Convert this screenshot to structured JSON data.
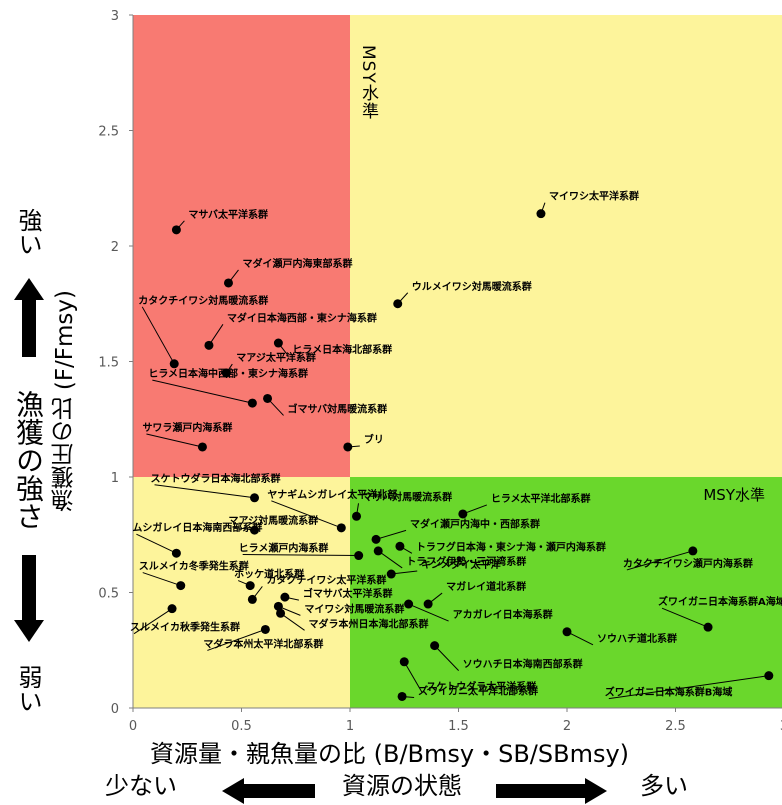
{
  "side": {
    "strong": "強い",
    "weak": "弱い",
    "fishing_strength": "漁獲の強さ",
    "few": "少ない",
    "many": "多い",
    "resource_state": "資源の状態"
  },
  "colors": {
    "red_zone": "#f87a72",
    "yellow_zone": "#fdf49b",
    "green_zone": "#6ad72c",
    "point": "#000000"
  },
  "chart_data": {
    "type": "scatter",
    "title": "",
    "xlabel": "資源量・親魚量の比 (B/Bmsy・SB/SBmsy)",
    "ylabel": "漁獲圧の比 (F/Fmsy)",
    "xlim": [
      0,
      3
    ],
    "ylim": [
      0,
      3
    ],
    "xticks": [
      "0",
      "0.5",
      "1",
      "1.5",
      "2",
      "2.5",
      "3"
    ],
    "yticks": [
      "0",
      "0.5",
      "1",
      "1.5",
      "2",
      "2.5",
      "3"
    ],
    "grid": false,
    "zones": [
      {
        "name": "overfishing",
        "x": [
          0,
          1
        ],
        "y": [
          1,
          3
        ],
        "color": "red_zone"
      },
      {
        "name": "caution",
        "x": [
          1,
          3
        ],
        "y": [
          1,
          3
        ],
        "color": "yellow_zone"
      },
      {
        "name": "caution-low",
        "x": [
          0,
          1
        ],
        "y": [
          0,
          1
        ],
        "color": "yellow_zone"
      },
      {
        "name": "good",
        "x": [
          1,
          3
        ],
        "y": [
          0,
          1
        ],
        "color": "green_zone"
      }
    ],
    "zone_labels": [
      "MSY水準",
      "MSY水準"
    ],
    "points": [
      {
        "label": "マサバ太平洋系群",
        "x": 0.2,
        "y": 2.07
      },
      {
        "label": "マイワシ太平洋系群",
        "x": 1.88,
        "y": 2.14
      },
      {
        "label": "マダイ瀬戸内海東部系群",
        "x": 0.44,
        "y": 1.84
      },
      {
        "label": "ウルメイワシ対馬暖流系群",
        "x": 1.22,
        "y": 1.75
      },
      {
        "label": "カタクチイワシ対馬暖流系群",
        "x": 0.19,
        "y": 1.49
      },
      {
        "label": "マダイ日本海西部・東シナ海系群",
        "x": 0.35,
        "y": 1.57
      },
      {
        "label": "ヒラメ日本海北部系群",
        "x": 0.67,
        "y": 1.58
      },
      {
        "label": "マアジ太平洋系群",
        "x": 0.43,
        "y": 1.45
      },
      {
        "label": "ヒラメ日本海中西部・東シナ海系群",
        "x": 0.55,
        "y": 1.32
      },
      {
        "label": "ゴマサバ対馬暖流系群",
        "x": 0.62,
        "y": 1.34
      },
      {
        "label": "サワラ瀬戸内海系群",
        "x": 0.32,
        "y": 1.13
      },
      {
        "label": "ブリ",
        "x": 0.99,
        "y": 1.13
      },
      {
        "label": "スケトウダラ日本海北部系群",
        "x": 0.56,
        "y": 0.91
      },
      {
        "label": "ヤナギムシガレイ太平洋北部",
        "x": 0.96,
        "y": 0.78
      },
      {
        "label": "マサバ対馬暖流系群",
        "x": 1.03,
        "y": 0.83
      },
      {
        "label": "ヒラメ太平洋北部系群",
        "x": 1.52,
        "y": 0.84
      },
      {
        "label": "マアジ対馬暖流系群",
        "x": 0.56,
        "y": 0.77
      },
      {
        "label": "マダイ瀬戸内海中・西部系群",
        "x": 1.12,
        "y": 0.73
      },
      {
        "label": "ムシガレイ日本海南西部系群",
        "x": 0.2,
        "y": 0.67
      },
      {
        "label": "ヒラメ瀬戸内海系群",
        "x": 1.04,
        "y": 0.66
      },
      {
        "label": "トラフグ日本海・東シナ海・瀬戸内海系群",
        "x": 1.23,
        "y": 0.7
      },
      {
        "label": "トラフグ伊勢・三河湾系群",
        "x": 1.13,
        "y": 0.68
      },
      {
        "label": "カタクチイワシ瀬戸内海系群",
        "x": 2.58,
        "y": 0.68
      },
      {
        "label": "スルメイカ冬季発生系群",
        "x": 0.22,
        "y": 0.53
      },
      {
        "label": "ホッケ道北系群",
        "x": 0.54,
        "y": 0.53
      },
      {
        "label": "キンメダイ太平洋",
        "x": 1.19,
        "y": 0.58
      },
      {
        "label": "カタクチイワシ太平洋系群",
        "x": 0.55,
        "y": 0.47
      },
      {
        "label": "ゴマサバ太平洋系群",
        "x": 0.7,
        "y": 0.48
      },
      {
        "label": "マガレイ道北系群",
        "x": 1.36,
        "y": 0.45
      },
      {
        "label": "アカガレイ日本海系群",
        "x": 1.27,
        "y": 0.45
      },
      {
        "label": "スルメイカ秋季発生系群",
        "x": 0.18,
        "y": 0.43
      },
      {
        "label": "マイワシ対馬暖流系群",
        "x": 0.67,
        "y": 0.44
      },
      {
        "label": "マダラ本州日本海北部系群",
        "x": 0.68,
        "y": 0.41
      },
      {
        "label": "ズワイガニ日本海系群A海域",
        "x": 2.65,
        "y": 0.35
      },
      {
        "label": "マダラ本州太平洋北部系群",
        "x": 0.61,
        "y": 0.34
      },
      {
        "label": "ソウハチ道北系群",
        "x": 2.0,
        "y": 0.33
      },
      {
        "label": "ソウハチ日本海南西部系群",
        "x": 1.39,
        "y": 0.27
      },
      {
        "label": "スケトウダラ太平洋系群",
        "x": 1.25,
        "y": 0.2
      },
      {
        "label": "ズワイガニ日本海系群B海域",
        "x": 2.93,
        "y": 0.14
      },
      {
        "label": "ズワイガニ太平洋北部系群",
        "x": 1.24,
        "y": 0.05
      }
    ]
  }
}
